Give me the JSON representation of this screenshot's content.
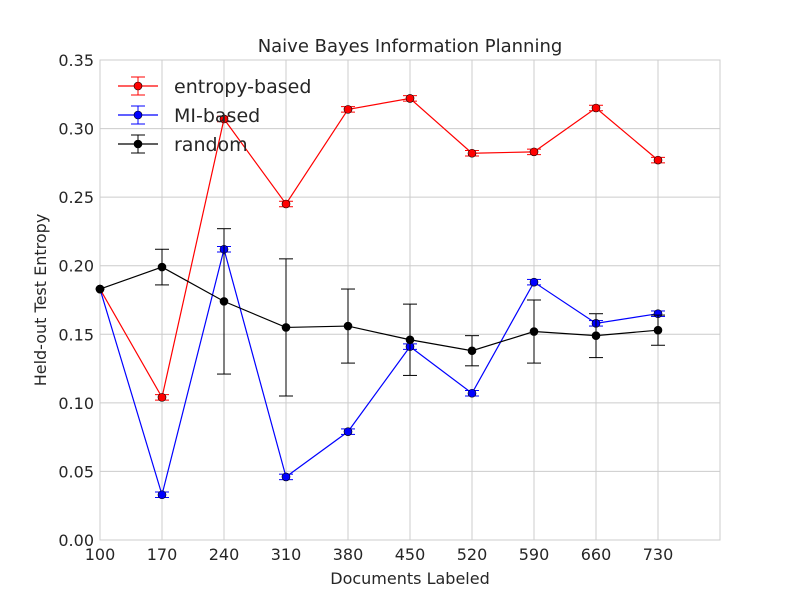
{
  "chart_data": {
    "type": "line",
    "title": "Naive Bayes Information Planning",
    "xlabel": "Documents Labeled",
    "ylabel": "Held-out Test Entropy",
    "xlim": [
      100,
      800
    ],
    "ylim": [
      0.0,
      0.35
    ],
    "grid": true,
    "legend_position": "top-left",
    "x_ticks": [
      "100",
      "170",
      "240",
      "310",
      "380",
      "450",
      "520",
      "590",
      "660",
      "730"
    ],
    "y_ticks": [
      "0.00",
      "0.05",
      "0.10",
      "0.15",
      "0.20",
      "0.25",
      "0.30",
      "0.35"
    ],
    "x": [
      100,
      170,
      240,
      310,
      380,
      450,
      520,
      590,
      660,
      730
    ],
    "series": [
      {
        "name": "entropy-based",
        "color": "#ff0000",
        "values": [
          0.183,
          0.104,
          0.307,
          0.245,
          0.314,
          0.322,
          0.282,
          0.283,
          0.315,
          0.277
        ],
        "errors": [
          0.0,
          0.002,
          0.002,
          0.002,
          0.002,
          0.002,
          0.002,
          0.002,
          0.002,
          0.002
        ]
      },
      {
        "name": "MI-based",
        "color": "#0000ff",
        "values": [
          0.183,
          0.033,
          0.212,
          0.046,
          0.079,
          0.141,
          0.107,
          0.188,
          0.158,
          0.165
        ],
        "errors": [
          0.0,
          0.002,
          0.002,
          0.002,
          0.002,
          0.002,
          0.002,
          0.002,
          0.002,
          0.002
        ]
      },
      {
        "name": "random",
        "color": "#000000",
        "values": [
          0.183,
          0.199,
          0.174,
          0.155,
          0.156,
          0.146,
          0.138,
          0.152,
          0.149,
          0.153
        ],
        "errors": [
          0.0,
          0.013,
          0.053,
          0.05,
          0.027,
          0.026,
          0.011,
          0.023,
          0.016,
          0.011
        ]
      }
    ]
  }
}
